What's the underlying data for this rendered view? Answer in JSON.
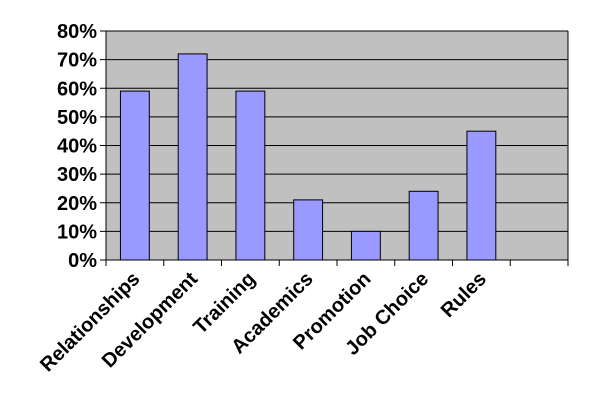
{
  "colors": {
    "plot_background": "#c0c0c0",
    "bar_fill": "#9999ff",
    "bar_stroke": "#000000",
    "gridline": "#000000",
    "axis": "#000000"
  },
  "chart_data": {
    "type": "bar",
    "title": "",
    "xlabel": "",
    "ylabel": "",
    "ylim": [
      0,
      0.8
    ],
    "yticks": [
      {
        "value": 0.0,
        "label": "0%"
      },
      {
        "value": 0.1,
        "label": "10%"
      },
      {
        "value": 0.2,
        "label": "20%"
      },
      {
        "value": 0.3,
        "label": "30%"
      },
      {
        "value": 0.4,
        "label": "40%"
      },
      {
        "value": 0.5,
        "label": "50%"
      },
      {
        "value": 0.6,
        "label": "60%"
      },
      {
        "value": 0.7,
        "label": "70%"
      },
      {
        "value": 0.8,
        "label": "80%"
      }
    ],
    "categories": [
      "Relationships",
      "Development",
      "Training",
      "Academics",
      "Promotion",
      "Job Choice",
      "Rules",
      ""
    ],
    "values": [
      0.59,
      0.72,
      0.59,
      0.21,
      0.1,
      0.24,
      0.45,
      null
    ],
    "grid": true,
    "legend": "none"
  }
}
